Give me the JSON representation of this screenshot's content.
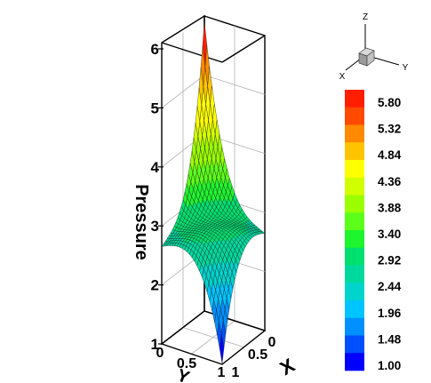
{
  "chart_data": {
    "type": "surface3d",
    "z_label": "Pressure",
    "x_label": "X",
    "y_label": "Y",
    "z_ticks": [
      1,
      2,
      3,
      4,
      5,
      6
    ],
    "x_ticks": [
      "0",
      "0.5",
      "1"
    ],
    "y_ticks": [
      "0",
      "0.5",
      "1"
    ],
    "z_range": [
      1,
      6
    ],
    "grid": true,
    "surface": {
      "description_values": {
        "corner_peak_pressure": 5.9,
        "corner_min_pressure": 1.0,
        "side_corner_pressures": [
          2.6,
          2.7
        ],
        "center_pressure": 2.9
      }
    },
    "colorbar": {
      "levels": [
        "5.80",
        "5.32",
        "4.84",
        "4.36",
        "3.88",
        "3.40",
        "2.92",
        "2.44",
        "1.96",
        "1.48",
        "1.00"
      ],
      "colors": [
        "#ff1e00",
        "#ff4a00",
        "#ff8a00",
        "#ffc400",
        "#ffff00",
        "#d2ff00",
        "#9bff00",
        "#5cff1a",
        "#1ff52e",
        "#00e070",
        "#00d99e",
        "#00d4cc",
        "#00c4ff",
        "#0090ff",
        "#0050ff",
        "#0000ff"
      ]
    },
    "orientation_axes": {
      "x": "X",
      "y": "Y",
      "z": "Z"
    }
  }
}
